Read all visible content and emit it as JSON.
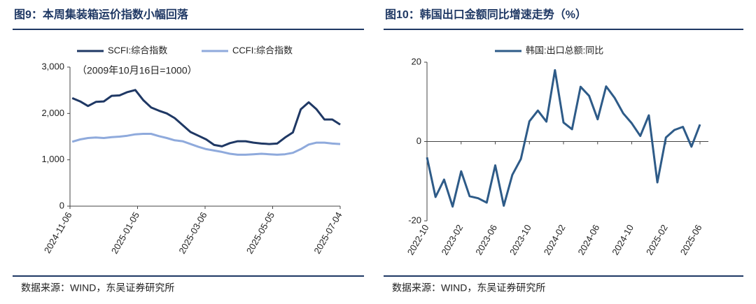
{
  "chart_data": [
    {
      "type": "line",
      "title": "图9：本周集装箱运价指数小幅回落",
      "annotation": "（2009年10月16日=1000）",
      "source": "数据来源：WIND，东吴证券研究所",
      "x": [
        "2024-11-08",
        "2024-11-15",
        "2024-11-22",
        "2024-11-29",
        "2024-12-06",
        "2024-12-13",
        "2024-12-20",
        "2024-12-27",
        "2025-01-03",
        "2025-01-10",
        "2025-01-17",
        "2025-01-24",
        "2025-01-31",
        "2025-02-07",
        "2025-02-14",
        "2025-02-21",
        "2025-02-28",
        "2025-03-07",
        "2025-03-14",
        "2025-03-21",
        "2025-03-28",
        "2025-04-04",
        "2025-04-11",
        "2025-04-18",
        "2025-04-25",
        "2025-05-02",
        "2025-05-09",
        "2025-05-16",
        "2025-05-23",
        "2025-05-30",
        "2025-06-06",
        "2025-06-13",
        "2025-06-20",
        "2025-06-27",
        "2025-07-04"
      ],
      "series": [
        {
          "name": "SCFI:综合指数",
          "color": "#1f3864",
          "values": [
            2330,
            2260,
            2160,
            2250,
            2260,
            2380,
            2390,
            2460,
            2505,
            2290,
            2130,
            2060,
            2000,
            1900,
            1750,
            1600,
            1520,
            1440,
            1320,
            1290,
            1360,
            1400,
            1400,
            1370,
            1350,
            1340,
            1350,
            1480,
            1590,
            2090,
            2240,
            2090,
            1870,
            1870,
            1760
          ]
        },
        {
          "name": "CCFI:综合指数",
          "color": "#8faadc",
          "values": [
            1390,
            1440,
            1470,
            1480,
            1470,
            1490,
            1500,
            1520,
            1550,
            1560,
            1560,
            1510,
            1470,
            1420,
            1400,
            1340,
            1280,
            1230,
            1200,
            1170,
            1130,
            1110,
            1110,
            1120,
            1130,
            1120,
            1110,
            1120,
            1150,
            1230,
            1330,
            1370,
            1370,
            1350,
            1340
          ]
        }
      ],
      "xlim": [
        "2024-11-06",
        "2025-07-04"
      ],
      "xticks": [
        "2024-11-06",
        "2025-01-05",
        "2025-03-06",
        "2025-05-05",
        "2025-07-04"
      ],
      "ylim": [
        0,
        3000
      ],
      "yticks": [
        0,
        {
          "value": 1000,
          "label": "1,000"
        },
        {
          "value": 2000,
          "label": "2,000"
        },
        {
          "value": 3000,
          "label": "3,000"
        }
      ]
    },
    {
      "type": "line",
      "title": "图10：韩国出口金额同比增速走势（%）",
      "source": "数据来源：WIND，东吴证券研究所",
      "x": [
        "2022-10",
        "2022-11",
        "2022-12",
        "2023-01",
        "2023-02",
        "2023-03",
        "2023-04",
        "2023-05",
        "2023-06",
        "2023-07",
        "2023-08",
        "2023-09",
        "2023-10",
        "2023-11",
        "2023-12",
        "2024-01",
        "2024-02",
        "2024-03",
        "2024-04",
        "2024-05",
        "2024-06",
        "2024-07",
        "2024-08",
        "2024-09",
        "2024-10",
        "2024-11",
        "2024-12",
        "2025-01",
        "2025-02",
        "2025-03",
        "2025-04",
        "2025-05",
        "2025-06"
      ],
      "series": [
        {
          "name": "韩国:出口总额:同比",
          "color": "#2e5b88",
          "values": [
            -4,
            -14,
            -9.6,
            -16.4,
            -7.5,
            -13.8,
            -14.3,
            -15.4,
            -6,
            -16.2,
            -8.4,
            -4.4,
            5.1,
            7.8,
            5,
            18,
            4.8,
            3.1,
            13.8,
            11.5,
            5.6,
            13.9,
            11,
            7.1,
            4.6,
            1.4,
            6.6,
            -10.3,
            1,
            2.9,
            3.7,
            -1.3,
            4.3
          ]
        }
      ],
      "xlim": [
        "2022-10",
        "2025-06"
      ],
      "xticks": [
        "2022-10",
        "2023-02",
        "2023-06",
        "2023-10",
        "2024-02",
        "2024-06",
        "2024-10",
        "2025-02",
        "2025-06"
      ],
      "ylim": [
        -20,
        20
      ],
      "yticks": [
        -20,
        0,
        20
      ]
    }
  ]
}
